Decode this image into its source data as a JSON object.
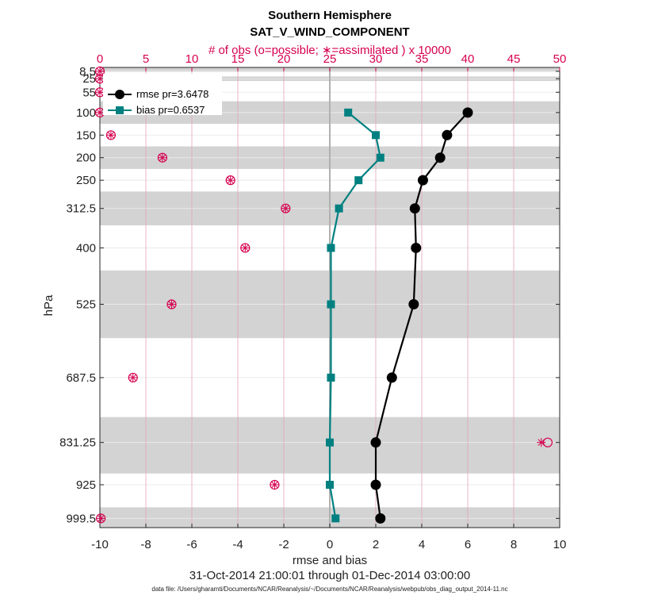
{
  "chart_data": {
    "type": "line",
    "title": "Southern Hemisphere",
    "subtitle": "SAT_V_WIND_COMPONENT",
    "top_axis_label": "# of obs (o=possible; ∗=assimilated ) x 10000",
    "xlabel": "rmse and bias",
    "ylabel": "hPa",
    "date_range": "31-Oct-2014 21:00:01 through 01-Dec-2014 03:00:00",
    "data_file": "data file: /Users/gharamti/Documents/NCAR/Reanalysis/~/Documents/NCAR/Reanalysis/webpub/obs_diag_output_2014-11.nc",
    "xlim": [
      -10,
      10
    ],
    "x_ticks": [
      "-10",
      "-8",
      "-6",
      "-4",
      "-2",
      "0",
      "2",
      "4",
      "6",
      "8",
      "10"
    ],
    "x_tick_values": [
      -10,
      -8,
      -6,
      -4,
      -2,
      0,
      2,
      4,
      6,
      8,
      10
    ],
    "top_xlim": [
      0,
      50
    ],
    "top_ticks": [
      "0",
      "5",
      "10",
      "15",
      "20",
      "25",
      "30",
      "35",
      "40",
      "45",
      "50"
    ],
    "top_tick_values": [
      0,
      5,
      10,
      15,
      20,
      25,
      30,
      35,
      40,
      45,
      50
    ],
    "ylim": [
      1020,
      0
    ],
    "levels": [
      8.5,
      25,
      55,
      100,
      150,
      200,
      250,
      312.5,
      400,
      525,
      687.5,
      831.25,
      925,
      999.5
    ],
    "level_labels": [
      "8.5",
      "25",
      "55",
      "100",
      "150",
      "200",
      "250",
      "312.5",
      "400",
      "525",
      "687.5",
      "831.25",
      "925",
      "999.5"
    ],
    "level_bounds": [
      0,
      10,
      20,
      30,
      75,
      125,
      175,
      225,
      275,
      350,
      450,
      600,
      775,
      900,
      975,
      1050
    ],
    "series": [
      {
        "name": "rmse",
        "legend": "rmse pr=3.6478",
        "color": "#000000",
        "marker": "circle",
        "levels": [
          100,
          150,
          200,
          250,
          312.5,
          400,
          525,
          687.5,
          831.25,
          925,
          999.5
        ],
        "values": [
          6.0,
          5.1,
          4.8,
          4.05,
          3.7,
          3.75,
          3.65,
          2.7,
          2.0,
          2.0,
          2.2
        ]
      },
      {
        "name": "bias",
        "legend": "bias pr=0.6537",
        "color": "#008080",
        "marker": "square",
        "levels": [
          100,
          150,
          200,
          250,
          312.5,
          400,
          525,
          687.5,
          831.25,
          925,
          999.5
        ],
        "values": [
          0.8,
          2.0,
          2.2,
          1.25,
          0.4,
          0.05,
          0.05,
          0.05,
          0.0,
          0.0,
          0.25
        ]
      }
    ],
    "obs": {
      "color": "#d6004f",
      "levels": [
        8.5,
        25,
        55,
        100,
        150,
        200,
        250,
        312.5,
        400,
        525,
        687.5,
        831.25,
        925,
        999.5
      ],
      "possible": [
        0,
        0,
        0,
        0,
        1.2,
        6.8,
        14.2,
        20.2,
        15.8,
        7.8,
        3.6,
        48.7,
        19.0,
        0.1
      ],
      "assimilated": [
        0,
        0,
        0,
        0,
        1.2,
        6.8,
        14.2,
        20.2,
        15.8,
        7.8,
        3.6,
        48.0,
        19.0,
        0.1
      ]
    }
  }
}
